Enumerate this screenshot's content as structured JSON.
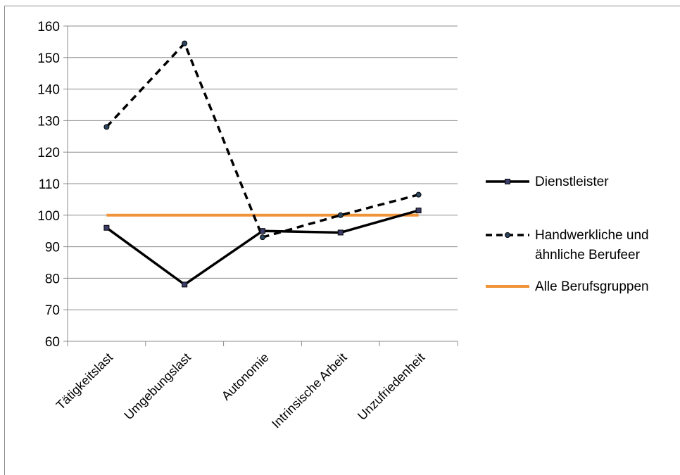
{
  "chart_data": {
    "type": "line",
    "categories": [
      "Tätigkeitslast",
      "Umgebungslast",
      "Autonomie",
      "Intrinsische Arbeit",
      "Unzufriedenheit"
    ],
    "ylim": [
      60,
      160
    ],
    "yticks": [
      60,
      70,
      80,
      90,
      100,
      110,
      120,
      130,
      140,
      150,
      160
    ],
    "grid": true,
    "legend_position": "right",
    "series": [
      {
        "name": "Dienstleister",
        "values": [
          96,
          78,
          95,
          94.5,
          101.5
        ],
        "color": "#000000",
        "dash": "solid",
        "marker": "square"
      },
      {
        "name": "Handwerkliche und ähnliche Berufeer",
        "name_lines": [
          "Handwerkliche und",
          "ähnliche Berufeer"
        ],
        "values": [
          128,
          154.5,
          93,
          100,
          106.5
        ],
        "color": "#000000",
        "dash": "dashed",
        "marker": "circle"
      },
      {
        "name": "Alle Berufsgruppen",
        "values": [
          100,
          100,
          100,
          100,
          100
        ],
        "color": "#f0943a",
        "dash": "solid",
        "marker": "none"
      }
    ]
  }
}
